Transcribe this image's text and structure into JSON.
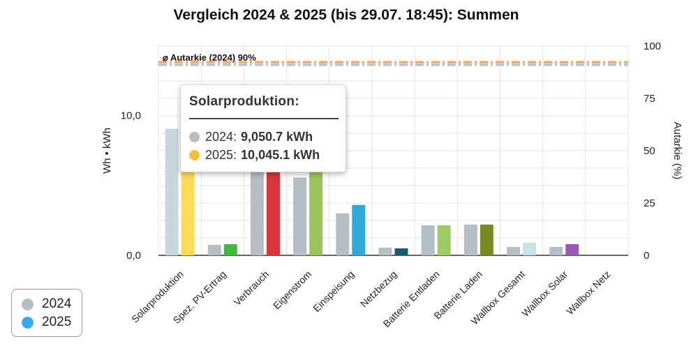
{
  "title": "Vergleich 2024 & 2025 (bis 29.07. 18:45): Summen",
  "colors": {
    "series_2024": "#b5bec4",
    "series_2025": "#3aaaf0",
    "autarkie_2024_line": "#b9bfc4",
    "autarkie_2025_line": "#f0a45a",
    "grid": "#e3e3e3"
  },
  "legend": {
    "items": [
      {
        "label": "2024",
        "color": "#b5bec4"
      },
      {
        "label": "2025",
        "color": "#3aaaf0"
      }
    ]
  },
  "tooltip": {
    "title": "Solarproduktion:",
    "rows": [
      {
        "label": "2024:",
        "value": "9,050.7 kWh",
        "color": "#b5bec4"
      },
      {
        "label": "2025:",
        "value": "10,045.1 kWh",
        "color": "#f2c233"
      }
    ]
  },
  "chart_data": {
    "type": "bar",
    "title": "Vergleich 2024 & 2025 (bis 29.07. 18:45): Summen",
    "categories": [
      "Solarproduktion",
      "Spez. PV-Ertrag",
      "Verbrauch",
      "Eigenstrom",
      "Einspeisung",
      "Netzbezug",
      "Batterie Entladen",
      "Batterie Laden",
      "Wallbox Gesamt",
      "Wallbox Solar",
      "Wallbox Netz"
    ],
    "ylabel": "Wh • kWh",
    "y2label": "Autarkie (%)",
    "yticks": [
      "0,0",
      "10,0"
    ],
    "y2ticks": [
      "0",
      "25",
      "50",
      "75",
      "100"
    ],
    "y2lim": [
      0,
      100
    ],
    "series": [
      {
        "name": "2024",
        "values": [
          9.05,
          0.75,
          6.9,
          5.55,
          3.0,
          0.55,
          2.15,
          2.2,
          0.6,
          0.6,
          0
        ],
        "colors": [
          "#c9d6de",
          "#b5bec4",
          "#b5bec4",
          "#b5bec4",
          "#b5bec4",
          "#b5bec4",
          "#b5bec4",
          "#b5bec4",
          "#b5bec4",
          "#b5bec4",
          "#b5bec4"
        ]
      },
      {
        "name": "2025",
        "values": [
          10.05,
          0.8,
          6.4,
          6.0,
          3.6,
          0.5,
          2.15,
          2.2,
          0.9,
          0.8,
          0
        ],
        "colors": [
          "#ffdb58",
          "#3dbb3d",
          "#d7363b",
          "#9bc45a",
          "#2ea9d8",
          "#1b5c74",
          "#9dcc63",
          "#7a8a22",
          "#c5e3ea",
          "#9b59b6",
          "#2ea9d8"
        ]
      }
    ],
    "reference_lines": [
      {
        "label": "⌀ Autarkie (2024) 90%",
        "axis": "y2",
        "value": 90,
        "color": "#b9bfc4",
        "dash": "dash-dot"
      },
      {
        "label": "",
        "axis": "y2",
        "value": 91,
        "color": "#f0a45a",
        "dash": "dash-dot"
      }
    ],
    "grid": true,
    "legend_position": "bottom-left"
  }
}
